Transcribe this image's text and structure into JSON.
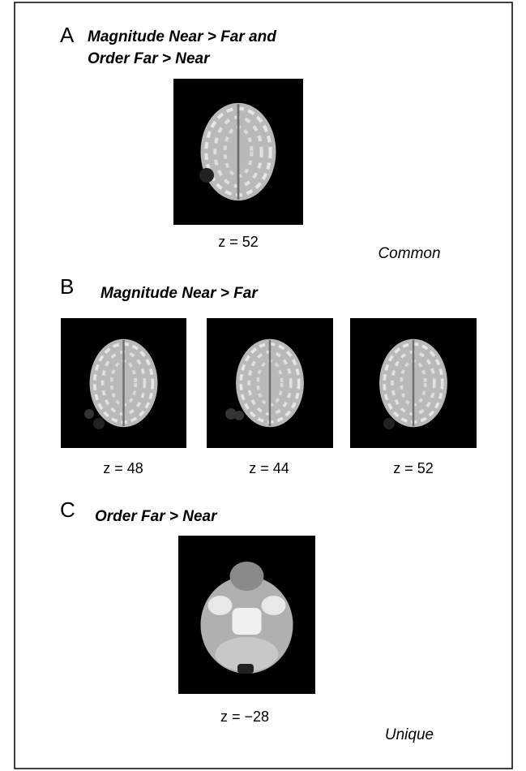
{
  "panels": [
    {
      "letter": "A",
      "title": [
        "Magnitude Near > Far and",
        "Order Far > Near"
      ],
      "images": [
        {
          "caption": "z = 52"
        }
      ],
      "note": "Common"
    },
    {
      "letter": "B",
      "title": [
        "Magnitude Near > Far"
      ],
      "images": [
        {
          "caption": "z = 48"
        },
        {
          "caption": "z = 44"
        },
        {
          "caption": "z = 52"
        }
      ]
    },
    {
      "letter": "C",
      "title": [
        "Order Far > Near"
      ],
      "images": [
        {
          "caption": "z = −28"
        }
      ],
      "note": "Unique"
    }
  ]
}
